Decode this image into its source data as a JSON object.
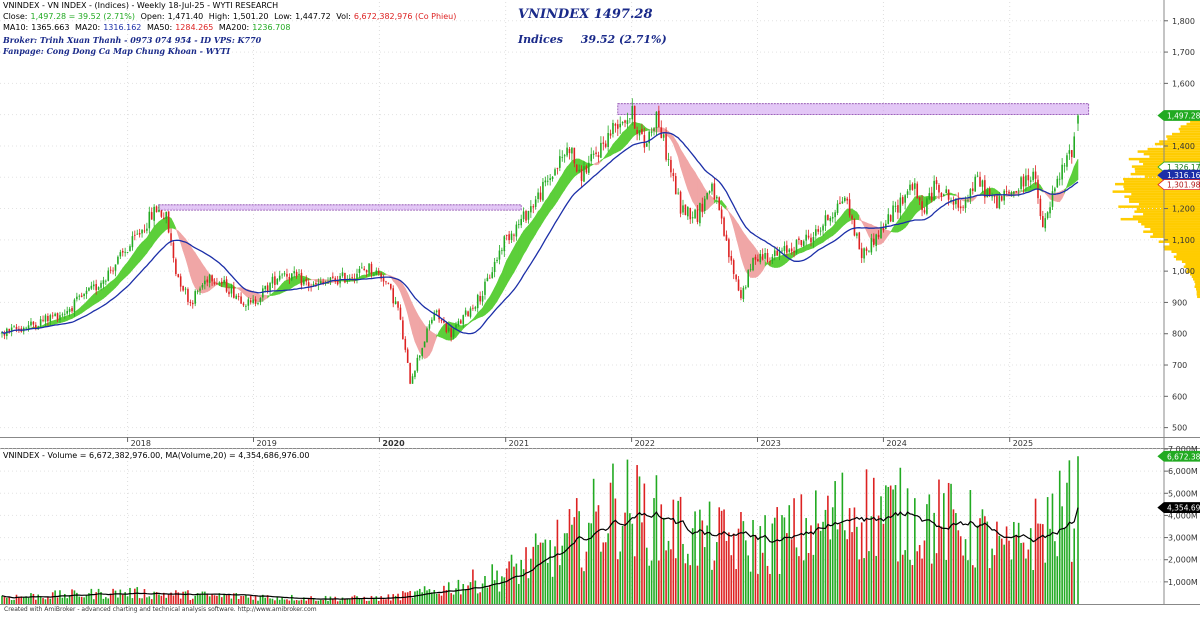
{
  "header": {
    "line1": {
      "symbol": "VNINDEX - VN INDEX - (Indices) - Weekly 18-Jul-25 - WYTI RESEARCH"
    },
    "line2": {
      "close_label": "Close:",
      "close": "1,497.28 = 39.52 (2.71%)",
      "open_label": "Open:",
      "open": "1,471.40",
      "high_label": "High:",
      "high": "1,501.20",
      "low_label": "Low:",
      "low": "1,447.72",
      "vol_label": "Vol:",
      "vol": "6,672,382,976 (Co Phieu)"
    },
    "line3": {
      "ma10_label": "MA10:",
      "ma10": "1365.663",
      "ma20_label": "MA20:",
      "ma20": "1316.162",
      "ma50_label": "MA50:",
      "ma50": "1284.265",
      "ma200_label": "MA200:",
      "ma200": "1236.708"
    },
    "broker": "Broker: Trinh Xuan Thanh - 0973 074 954 - ID VPS: K770",
    "fanpage": "Fanpage: Cong Dong Ca Map Chung Khoan - WYTI",
    "big_title": "VNINDEX 1497.28",
    "indices_label": "Indices",
    "indices_change": "39.52 (2.71%)"
  },
  "volume_header": "VNINDEX - Volume = 6,672,382,976.00, MA(Volume,20) = 4,354,686,976.00",
  "footer": "Created with AmiBroker - advanced charting and technical analysis software. http://www.amibroker.com",
  "colors": {
    "up": "#22aa22",
    "down": "#dd2222",
    "ma_blue": "#1c2fa8",
    "ma_band_green": "#5ccf3a",
    "ma_band_pink": "#f0a6a6",
    "resistance": "#cc99ee",
    "volume_profile": "#ffcc00",
    "volume_ma": "#000000",
    "price_tag_green": "#22aa22",
    "price_tag_blue": "#1c2fa8",
    "price_tag_black": "#000000"
  },
  "chart_data": [
    {
      "type": "candlestick",
      "panel": "price",
      "timeframe": "weekly",
      "ylim": [
        470,
        1860
      ],
      "y_ticks": [
        500,
        600,
        700,
        800,
        900,
        1000,
        1100,
        1200,
        1300,
        1400,
        1500,
        1600,
        1700,
        1800
      ],
      "y_tick_labels": [
        "500",
        "600",
        "700",
        "800",
        "900",
        "1,000",
        "1,100",
        "1,200",
        "1,300",
        "1,400",
        "1,500",
        "1,600",
        "1,700",
        "1,800"
      ],
      "x_ticks": [
        {
          "date": "2018-01-01",
          "label": "2018"
        },
        {
          "date": "2019-01-01",
          "label": "2019"
        },
        {
          "date": "2020-01-01",
          "label": "2020"
        },
        {
          "date": "2021-01-01",
          "label": "2021"
        },
        {
          "date": "2022-01-01",
          "label": "2022"
        },
        {
          "date": "2023-01-01",
          "label": "2023"
        },
        {
          "date": "2024-01-01",
          "label": "2024"
        },
        {
          "date": "2025-01-01",
          "label": "2025"
        }
      ],
      "start_date": "2017-01-02",
      "end_date": "2025-07-18",
      "anchors": [
        [
          "2017-01-02",
          800
        ],
        [
          "2017-04-03",
          830
        ],
        [
          "2017-07-03",
          870
        ],
        [
          "2017-10-02",
          950
        ],
        [
          "2018-01-08",
          1080
        ],
        [
          "2018-03-26",
          1200
        ],
        [
          "2018-04-23",
          1170
        ],
        [
          "2018-05-21",
          1000
        ],
        [
          "2018-07-02",
          900
        ],
        [
          "2018-08-27",
          990
        ],
        [
          "2018-10-15",
          950
        ],
        [
          "2018-12-24",
          890
        ],
        [
          "2019-03-25",
          1000
        ],
        [
          "2019-06-24",
          950
        ],
        [
          "2019-09-23",
          980
        ],
        [
          "2019-12-02",
          1010
        ],
        [
          "2020-01-13",
          980
        ],
        [
          "2020-02-24",
          880
        ],
        [
          "2020-03-30",
          650
        ],
        [
          "2020-06-08",
          870
        ],
        [
          "2020-07-27",
          800
        ],
        [
          "2020-10-26",
          930
        ],
        [
          "2020-12-28",
          1100
        ],
        [
          "2021-02-15",
          1160
        ],
        [
          "2021-04-12",
          1250
        ],
        [
          "2021-07-05",
          1400
        ],
        [
          "2021-08-02",
          1300
        ],
        [
          "2021-09-06",
          1350
        ],
        [
          "2021-11-22",
          1480
        ],
        [
          "2022-01-03",
          1500
        ],
        [
          "2022-02-07",
          1400
        ],
        [
          "2022-03-14",
          1500
        ],
        [
          "2022-05-23",
          1200
        ],
        [
          "2022-07-11",
          1180
        ],
        [
          "2022-08-22",
          1280
        ],
        [
          "2022-10-10",
          1050
        ],
        [
          "2022-11-14",
          920
        ],
        [
          "2022-12-26",
          1050
        ],
        [
          "2023-02-27",
          1050
        ],
        [
          "2023-06-19",
          1120
        ],
        [
          "2023-09-11",
          1240
        ],
        [
          "2023-10-30",
          1050
        ],
        [
          "2023-12-25",
          1130
        ],
        [
          "2024-03-25",
          1280
        ],
        [
          "2024-04-22",
          1190
        ],
        [
          "2024-06-03",
          1280
        ],
        [
          "2024-08-05",
          1200
        ],
        [
          "2024-09-30",
          1290
        ],
        [
          "2024-11-18",
          1220
        ],
        [
          "2025-01-20",
          1260
        ],
        [
          "2025-03-10",
          1320
        ],
        [
          "2025-04-07",
          1130
        ],
        [
          "2025-05-05",
          1240
        ],
        [
          "2025-06-02",
          1320
        ],
        [
          "2025-06-30",
          1390
        ],
        [
          "2025-07-18",
          1497.28
        ]
      ],
      "last_bar": {
        "date": "2025-07-18",
        "open": 1471.4,
        "high": 1501.2,
        "low": 1447.72,
        "close": 1497.28
      },
      "moving_averages": [
        {
          "name": "MA10",
          "value": 1365.663,
          "drawn": "band"
        },
        {
          "name": "MA20",
          "value": 1316.162,
          "drawn": "band"
        },
        {
          "name": "MA50",
          "value": 1284.265,
          "drawn": "blue line"
        },
        {
          "name": "MA200",
          "value": 1236.708
        }
      ],
      "resistance_zones": [
        {
          "from": "2018-04-01",
          "to": "2021-02-15",
          "low": 1195,
          "high": 1212
        },
        {
          "from": "2021-11-22",
          "to": "2025-08-18",
          "low": 1500,
          "high": 1535
        }
      ],
      "price_tags": [
        {
          "value": 1497.28,
          "label": "1,497.28",
          "style": "green"
        },
        {
          "value": 1326.17,
          "label": "1,326.17",
          "style": "outline-green"
        },
        {
          "value": 1316.16,
          "label": "1,316.16",
          "style": "blue"
        },
        {
          "value": 1301.98,
          "label": "1,301.98",
          "style": "outline-red"
        }
      ],
      "volume_profile": "right-side histogram, peak near 1,230"
    },
    {
      "type": "bar",
      "panel": "volume",
      "ylim": [
        0,
        7000
      ],
      "unit": "M",
      "y_ticks": [
        1000,
        2000,
        3000,
        4000,
        5000,
        6000,
        7000
      ],
      "y_tick_labels": [
        "1,000M",
        "2,000M",
        "3,000M",
        "4,000M",
        "5,000M",
        "6,000M",
        "7,000M"
      ],
      "last_volume": 6672.382976,
      "last_ma20": 4354.686976,
      "tags": [
        {
          "value": 6672.38,
          "label": "6,672.38",
          "style": "green"
        },
        {
          "value": 4354.69,
          "label": "4,354.69",
          "style": "black"
        }
      ],
      "volume_anchors": [
        [
          "2017-01-02",
          300
        ],
        [
          "2017-12-25",
          500
        ],
        [
          "2018-06-25",
          400
        ],
        [
          "2019-06-24",
          250
        ],
        [
          "2020-01-13",
          250
        ],
        [
          "2020-06-01",
          550
        ],
        [
          "2020-12-28",
          1300
        ],
        [
          "2021-06-28",
          2700
        ],
        [
          "2021-11-22",
          4400
        ],
        [
          "2022-06-27",
          3000
        ],
        [
          "2022-12-26",
          2600
        ],
        [
          "2023-06-26",
          3400
        ],
        [
          "2023-10-02",
          4200
        ],
        [
          "2024-03-25",
          3800
        ],
        [
          "2024-08-26",
          3400
        ],
        [
          "2024-12-30",
          2200
        ],
        [
          "2025-04-07",
          3400
        ],
        [
          "2025-07-18",
          4354.69
        ]
      ]
    }
  ]
}
